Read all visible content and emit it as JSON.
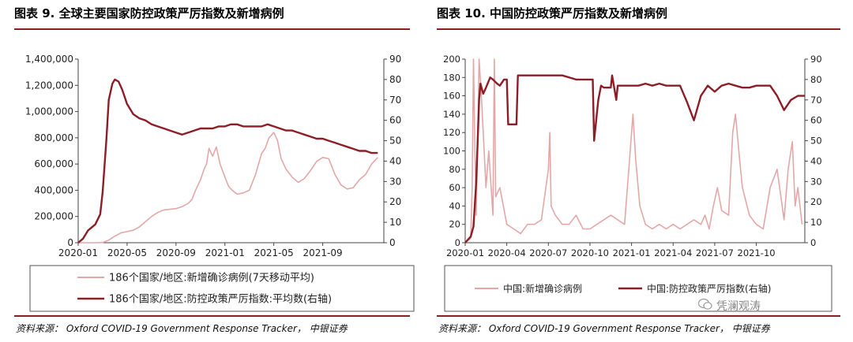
{
  "left": {
    "title": "图表 9. 全球主要国家防控政策严厉指数及新增病例",
    "source": "资料来源： Oxford COVID-19 Government Response Tracker， 中银证券"
  },
  "right": {
    "title": "图表 10. 中国防控政策严厉指数及新增病例",
    "source": "资料来源： Oxford COVID-19 Government Response Tracker， 中银证券"
  },
  "watermark": {
    "text": "凭澜观涛"
  },
  "colors": {
    "cases": "#e2a8a8",
    "index": "#8b1e26",
    "rule": "#8a1d25"
  },
  "chart_data": [
    {
      "type": "line",
      "x_unit": "month offset from 2020-01",
      "xticks": [
        {
          "x": 0,
          "label": "2020-01"
        },
        {
          "x": 4,
          "label": "2020-05"
        },
        {
          "x": 8,
          "label": "2020-09"
        },
        {
          "x": 12,
          "label": "2021-01"
        },
        {
          "x": 16,
          "label": "2021-05"
        },
        {
          "x": 20,
          "label": "2021-09"
        }
      ],
      "xlim": [
        0,
        25
      ],
      "ylim": [
        0,
        1400000
      ],
      "yticks": [
        "0",
        "200,000",
        "400,000",
        "600,000",
        "800,000",
        "1,000,000",
        "1,200,000",
        "1,400,000"
      ],
      "y2lim": [
        0,
        90
      ],
      "y2ticks": [
        "0",
        "10",
        "20",
        "30",
        "40",
        "50",
        "60",
        "70",
        "80",
        "90"
      ],
      "legend_position": "bottom",
      "series": [
        {
          "name": "186个国家/地区:新增确诊病例(7天移动平均)",
          "axis": "left",
          "x": [
            0,
            1.5,
            2,
            2.5,
            3,
            3.5,
            4,
            4.5,
            5,
            5.5,
            6,
            6.5,
            7,
            7.5,
            8,
            8.5,
            9,
            9.3,
            9.6,
            10,
            10.3,
            10.5,
            10.7,
            11,
            11.3,
            11.6,
            12,
            12.3,
            12.6,
            13,
            13.5,
            14,
            14.5,
            15,
            15.3,
            15.6,
            16,
            16.3,
            16.6,
            17,
            17.5,
            18,
            18.5,
            19,
            19.5,
            20,
            20.5,
            21,
            21.5,
            22,
            22.5,
            23,
            23.5,
            24,
            24.5
          ],
          "y": [
            0,
            0,
            2000,
            20000,
            50000,
            75000,
            85000,
            95000,
            120000,
            160000,
            200000,
            230000,
            250000,
            255000,
            260000,
            275000,
            300000,
            330000,
            400000,
            480000,
            560000,
            600000,
            720000,
            660000,
            730000,
            600000,
            500000,
            430000,
            400000,
            370000,
            380000,
            400000,
            520000,
            680000,
            720000,
            800000,
            840000,
            780000,
            640000,
            560000,
            500000,
            460000,
            490000,
            550000,
            620000,
            650000,
            640000,
            520000,
            440000,
            410000,
            420000,
            480000,
            520000,
            600000,
            650000
          ]
        },
        {
          "name": "186个国家/地区:防控政策严厉指数:平均数(右轴)",
          "axis": "right",
          "x": [
            0,
            0.4,
            0.8,
            1.0,
            1.4,
            1.8,
            2.0,
            2.3,
            2.5,
            2.8,
            3.0,
            3.3,
            3.6,
            4.0,
            4.5,
            5,
            5.5,
            6,
            6.5,
            7,
            7.5,
            8,
            8.5,
            9,
            9.5,
            10,
            10.5,
            11,
            11.5,
            12,
            12.5,
            13,
            13.5,
            14,
            14.5,
            15,
            15.5,
            16,
            16.5,
            17,
            17.5,
            18,
            18.5,
            19,
            19.5,
            20,
            20.5,
            21,
            21.5,
            22,
            22.5,
            23,
            23.5,
            24,
            24.5
          ],
          "y": [
            0,
            2,
            6,
            7,
            9,
            14,
            25,
            50,
            70,
            78,
            80,
            79,
            75,
            68,
            63,
            61,
            60,
            58,
            57,
            56,
            55,
            54,
            53,
            54,
            55,
            56,
            56,
            56,
            57,
            57,
            58,
            58,
            57,
            57,
            57,
            57,
            58,
            57,
            56,
            55,
            55,
            54,
            53,
            52,
            51,
            51,
            50,
            49,
            48,
            47,
            46,
            45,
            45,
            44,
            44
          ]
        }
      ]
    },
    {
      "type": "line",
      "x_unit": "month offset from 2020-01",
      "xticks": [
        {
          "x": 0,
          "label": "2020-01"
        },
        {
          "x": 3,
          "label": "2020-04"
        },
        {
          "x": 6,
          "label": "2020-07"
        },
        {
          "x": 9,
          "label": "2020-10"
        },
        {
          "x": 12,
          "label": "2021-01"
        },
        {
          "x": 15,
          "label": "2021-04"
        },
        {
          "x": 18,
          "label": "2021-07"
        },
        {
          "x": 21,
          "label": "2021-10"
        }
      ],
      "xlim": [
        0,
        24.5
      ],
      "ylim": [
        0,
        200
      ],
      "yticks": [
        "0",
        "20",
        "40",
        "60",
        "80",
        "100",
        "120",
        "140",
        "160",
        "180",
        "200"
      ],
      "y2lim": [
        0,
        90
      ],
      "y2ticks": [
        "0",
        "10",
        "20",
        "30",
        "40",
        "50",
        "60",
        "70",
        "80",
        "90"
      ],
      "legend_position": "bottom",
      "series": [
        {
          "name": "中国:新增确诊病例",
          "axis": "left",
          "x": [
            0,
            0.4,
            0.5,
            0.6,
            0.7,
            0.8,
            1.0,
            1.2,
            1.5,
            1.7,
            2.0,
            2.1,
            2.2,
            2.5,
            3,
            3.5,
            4,
            4.5,
            5,
            5.5,
            6,
            6.1,
            6.2,
            6.5,
            7,
            7.5,
            8,
            8.5,
            9,
            9.5,
            10,
            10.5,
            11,
            11.5,
            11.9,
            12.1,
            12.3,
            12.6,
            13,
            13.5,
            14,
            14.5,
            15,
            15.5,
            16,
            16.5,
            17,
            17.3,
            17.6,
            17.9,
            18.2,
            18.5,
            19,
            19.3,
            19.5,
            19.8,
            20,
            20.5,
            21,
            21.5,
            22,
            22.5,
            23,
            23.3,
            23.6,
            23.8,
            24,
            24.3
          ],
          "y": [
            0,
            5,
            60,
            200,
            100,
            30,
            200,
            150,
            60,
            100,
            30,
            200,
            50,
            60,
            20,
            15,
            10,
            20,
            20,
            25,
            80,
            120,
            40,
            30,
            20,
            20,
            30,
            15,
            15,
            20,
            25,
            30,
            25,
            20,
            100,
            140,
            90,
            40,
            20,
            15,
            20,
            15,
            20,
            15,
            20,
            25,
            20,
            30,
            15,
            40,
            60,
            35,
            30,
            120,
            140,
            90,
            60,
            30,
            20,
            15,
            60,
            80,
            25,
            80,
            110,
            40,
            60,
            20
          ]
        },
        {
          "name": "中国:防控政策严厉指数(右轴)",
          "axis": "right",
          "x": [
            0,
            0.4,
            0.6,
            0.8,
            1.0,
            1.1,
            1.3,
            1.5,
            1.8,
            2.0,
            2.3,
            2.5,
            2.8,
            3.0,
            3.1,
            3.7,
            3.8,
            4.5,
            5,
            6,
            7,
            8,
            8.5,
            9.2,
            9.3,
            9.6,
            9.8,
            10,
            10.5,
            10.6,
            10.9,
            11,
            11.5,
            12,
            12.5,
            13,
            13.5,
            14,
            14.5,
            15,
            15.5,
            16,
            16.5,
            17,
            17.5,
            18,
            18.5,
            19,
            19.5,
            20,
            20.5,
            21,
            21.5,
            22,
            22.5,
            23,
            23.5,
            24,
            24.5
          ],
          "y": [
            0,
            3,
            8,
            30,
            70,
            78,
            73,
            76,
            81,
            80,
            78,
            77,
            80,
            80,
            58,
            58,
            82,
            82,
            82,
            82,
            82,
            80,
            80,
            80,
            50,
            70,
            77,
            76,
            76,
            82,
            70,
            77,
            77,
            77,
            77,
            78,
            77,
            78,
            77,
            77,
            77,
            69,
            60,
            72,
            77,
            74,
            77,
            78,
            77,
            76,
            76,
            77,
            77,
            77,
            72,
            65,
            70,
            72,
            72
          ]
        }
      ]
    }
  ]
}
